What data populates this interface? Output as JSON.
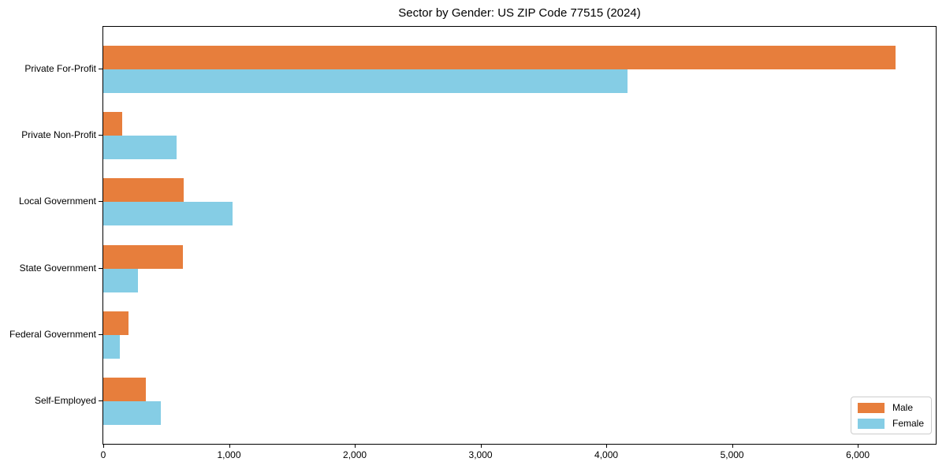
{
  "figure": {
    "background": "#ffffff"
  },
  "chart_data": {
    "type": "bar",
    "orientation": "horizontal",
    "title": "Sector by Gender: US ZIP Code 77515 (2024)",
    "categories": [
      "Private For-Profit",
      "Private Non-Profit",
      "Local Government",
      "State Government",
      "Federal Government",
      "Self-Employed"
    ],
    "series": [
      {
        "name": "Male",
        "color": "#e77e3c",
        "values": [
          6300,
          150,
          640,
          635,
          200,
          340
        ]
      },
      {
        "name": "Female",
        "color": "#85cde5",
        "values": [
          4170,
          580,
          1030,
          275,
          130,
          460
        ]
      }
    ],
    "xlabel": "",
    "ylabel": "",
    "xlim": [
      0,
      6620
    ],
    "xticks": [
      {
        "value": 0,
        "label": "0"
      },
      {
        "value": 1000,
        "label": "1,000"
      },
      {
        "value": 2000,
        "label": "2,000"
      },
      {
        "value": 3000,
        "label": "3,000"
      },
      {
        "value": 4000,
        "label": "4,000"
      },
      {
        "value": 5000,
        "label": "5,000"
      },
      {
        "value": 6000,
        "label": "6,000"
      }
    ],
    "grid": false,
    "legend": {
      "position": "lower-right",
      "entries": [
        "Male",
        "Female"
      ]
    }
  }
}
